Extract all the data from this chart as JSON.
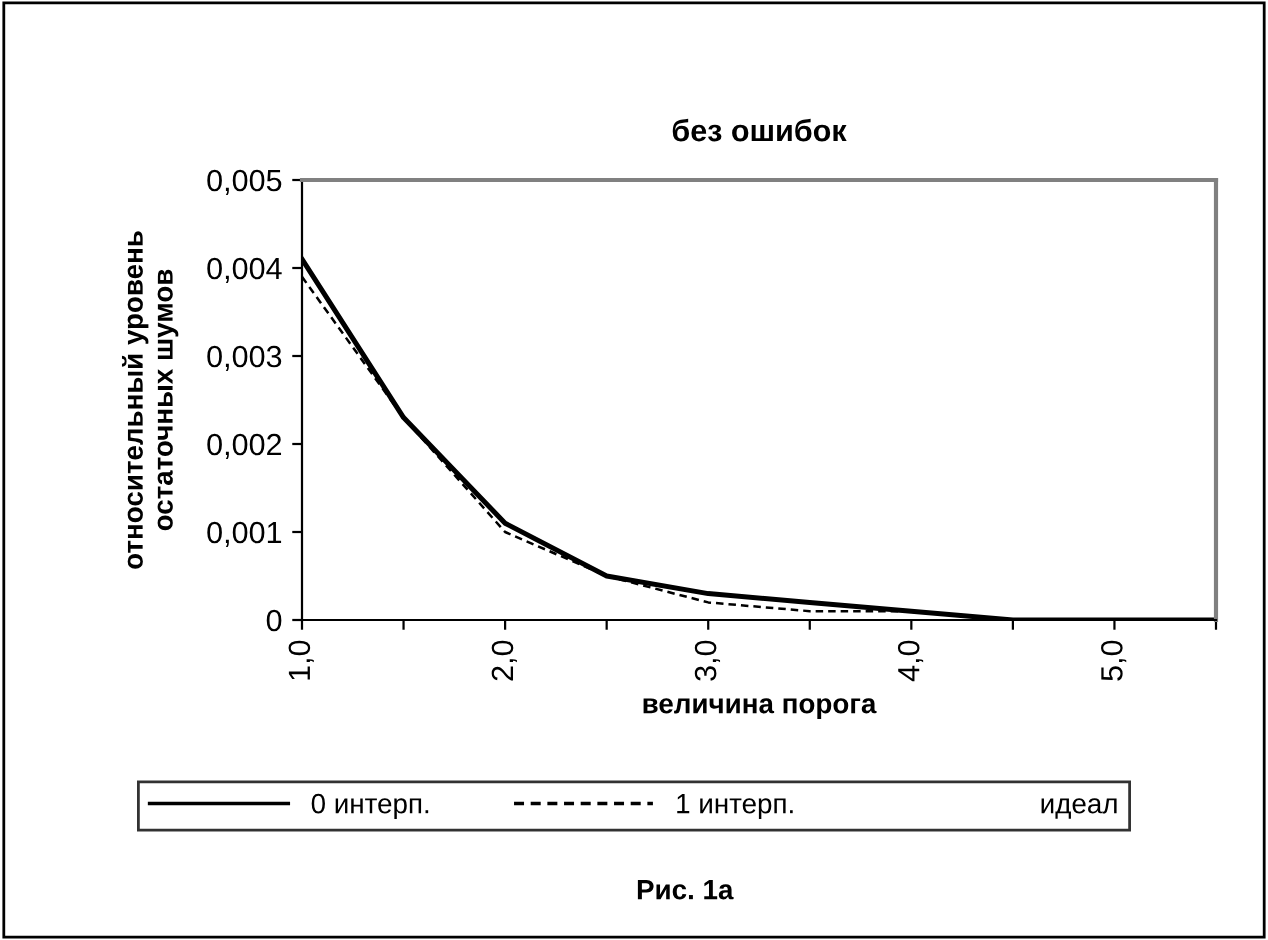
{
  "chart_data": {
    "type": "line",
    "title": "без ошибок",
    "xlabel": "величина порога",
    "ylabel": "относительный уровень\nостаточных шумов",
    "x": [
      1.0,
      1.5,
      2.0,
      2.5,
      3.0,
      3.5,
      4.0,
      4.5,
      5.0,
      5.5
    ],
    "series": [
      {
        "name": "0 интерп.",
        "color": "#000000",
        "line_style": "solid",
        "values": [
          0.0041,
          0.0023,
          0.0011,
          0.0005,
          0.0003,
          0.0002,
          0.0001,
          0.0,
          0.0,
          0.0
        ]
      },
      {
        "name": "1 интерп.",
        "color": "#000000",
        "line_style": "dashed",
        "values": [
          0.0039,
          0.0023,
          0.001,
          0.0005,
          0.0002,
          0.0001,
          0.0001,
          0.0,
          0.0,
          0.0
        ]
      },
      {
        "name": "идеал",
        "values": [
          null,
          null,
          null,
          null,
          null,
          null,
          null,
          null,
          null,
          null
        ]
      }
    ],
    "xlim": [
      1.0,
      5.5
    ],
    "xticks": [
      {
        "value": 1.0,
        "label": "1,0"
      },
      {
        "value": 1.5,
        "label": null
      },
      {
        "value": 2.0,
        "label": "2,0"
      },
      {
        "value": 2.5,
        "label": null
      },
      {
        "value": 3.0,
        "label": "3,0"
      },
      {
        "value": 3.5,
        "label": null
      },
      {
        "value": 4.0,
        "label": "4,0"
      },
      {
        "value": 4.5,
        "label": null
      },
      {
        "value": 5.0,
        "label": "5,0"
      },
      {
        "value": 5.5,
        "label": null
      }
    ],
    "ylim": [
      0,
      0.005
    ],
    "yticks": [
      {
        "value": 0,
        "label": "0"
      },
      {
        "value": 0.001,
        "label": "0,001"
      },
      {
        "value": 0.002,
        "label": "0,002"
      },
      {
        "value": 0.003,
        "label": "0,003"
      },
      {
        "value": 0.004,
        "label": "0,004"
      },
      {
        "value": 0.005,
        "label": "0,005"
      }
    ],
    "grid": false,
    "legend": "bottom",
    "marker": "none",
    "annotations": [
      "Рис. 1а"
    ]
  }
}
